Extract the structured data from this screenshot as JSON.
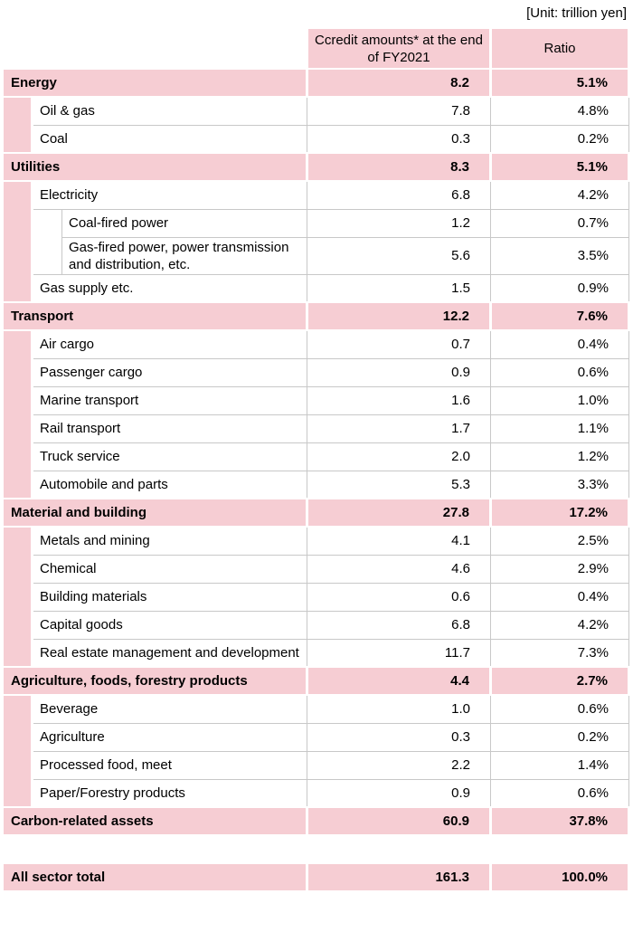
{
  "unit_label": "[Unit: trillion yen]",
  "colors": {
    "row_pink": "#f6cdd3",
    "border_gray": "#c8c8c8",
    "text": "#000000"
  },
  "chart_data": {
    "type": "table",
    "unit": "trillion yen",
    "columns": [
      "Ccredit amounts* at the end of FY2021",
      "Ratio"
    ],
    "rows": [
      {
        "label": "Energy",
        "level": 0,
        "amount": "8.2",
        "ratio": "5.1%"
      },
      {
        "label": "Oil & gas",
        "level": 1,
        "amount": "7.8",
        "ratio": "4.8%"
      },
      {
        "label": "Coal",
        "level": 1,
        "amount": "0.3",
        "ratio": "0.2%"
      },
      {
        "label": "Utilities",
        "level": 0,
        "amount": "8.3",
        "ratio": "5.1%"
      },
      {
        "label": "Electricity",
        "level": 1,
        "amount": "6.8",
        "ratio": "4.2%"
      },
      {
        "label": "Coal-fired power",
        "level": 2,
        "amount": "1.2",
        "ratio": "0.7%"
      },
      {
        "label": "Gas-fired power, power transmission and distribution, etc.",
        "level": 2,
        "amount": "5.6",
        "ratio": "3.5%"
      },
      {
        "label": "Gas supply etc.",
        "level": 1,
        "amount": "1.5",
        "ratio": "0.9%"
      },
      {
        "label": "Transport",
        "level": 0,
        "amount": "12.2",
        "ratio": "7.6%"
      },
      {
        "label": "Air cargo",
        "level": 1,
        "amount": "0.7",
        "ratio": "0.4%"
      },
      {
        "label": "Passenger cargo",
        "level": 1,
        "amount": "0.9",
        "ratio": "0.6%"
      },
      {
        "label": "Marine transport",
        "level": 1,
        "amount": "1.6",
        "ratio": "1.0%"
      },
      {
        "label": "Rail transport",
        "level": 1,
        "amount": "1.7",
        "ratio": "1.1%"
      },
      {
        "label": "Truck service",
        "level": 1,
        "amount": "2.0",
        "ratio": "1.2%"
      },
      {
        "label": "Automobile and parts",
        "level": 1,
        "amount": "5.3",
        "ratio": "3.3%"
      },
      {
        "label": "Material and building",
        "level": 0,
        "amount": "27.8",
        "ratio": "17.2%"
      },
      {
        "label": "Metals and mining",
        "level": 1,
        "amount": "4.1",
        "ratio": "2.5%"
      },
      {
        "label": "Chemical",
        "level": 1,
        "amount": "4.6",
        "ratio": "2.9%"
      },
      {
        "label": "Building materials",
        "level": 1,
        "amount": "0.6",
        "ratio": "0.4%"
      },
      {
        "label": "Capital goods",
        "level": 1,
        "amount": "6.8",
        "ratio": "4.2%"
      },
      {
        "label": "Real estate management and development",
        "level": 1,
        "amount": "11.7",
        "ratio": "7.3%"
      },
      {
        "label": "Agriculture, foods, forestry products",
        "level": 0,
        "amount": "4.4",
        "ratio": "2.7%"
      },
      {
        "label": "Beverage",
        "level": 1,
        "amount": "1.0",
        "ratio": "0.6%"
      },
      {
        "label": "Agriculture",
        "level": 1,
        "amount": "0.3",
        "ratio": "0.2%"
      },
      {
        "label": "Processed food, meet",
        "level": 1,
        "amount": "2.2",
        "ratio": "1.4%"
      },
      {
        "label": "Paper/Forestry products",
        "level": 1,
        "amount": "0.9",
        "ratio": "0.6%"
      },
      {
        "label": "Carbon-related assets",
        "level": 0,
        "amount": "60.9",
        "ratio": "37.8%"
      },
      {
        "type": "spacer"
      },
      {
        "label": "All sector total",
        "level": 0,
        "amount": "161.3",
        "ratio": "100.0%"
      }
    ]
  }
}
